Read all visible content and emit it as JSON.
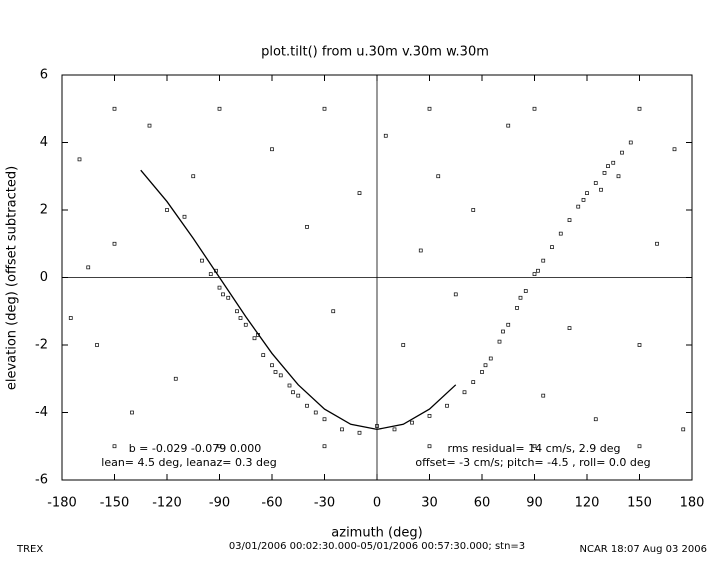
{
  "chart_data": {
    "type": "scatter",
    "title": "plot.tilt() from u.30m v.30m w.30m",
    "x_label": "azimuth (deg)",
    "y_label": "elevation (deg)  (offset subtracted)",
    "xlim": [
      -180,
      180
    ],
    "ylim": [
      -6,
      6
    ],
    "xticks": [
      -180,
      -150,
      -120,
      -90,
      -60,
      -30,
      0,
      30,
      60,
      90,
      120,
      150,
      180
    ],
    "yticks": [
      -6,
      -4,
      -2,
      0,
      2,
      4,
      6
    ],
    "color": "#000000",
    "series": [
      {
        "x": [
          -120,
          -110,
          -100,
          -95,
          -90,
          -85,
          -80,
          -75,
          -70,
          -65,
          -60,
          -55,
          -50,
          -45,
          -40,
          -35,
          -30,
          -20,
          -10,
          0,
          10,
          20,
          30,
          40,
          50,
          55,
          60,
          65,
          70,
          75,
          80,
          85,
          90,
          95,
          100,
          105,
          110,
          115,
          120,
          125,
          130,
          135,
          140,
          145,
          -92,
          -88,
          -78,
          -68,
          -58,
          -48,
          62,
          72,
          82,
          92,
          118,
          128,
          132,
          138,
          -170,
          -160,
          -150,
          -140,
          -130,
          -115,
          -105,
          -60,
          -40,
          -25,
          -10,
          5,
          15,
          25,
          35,
          45,
          55,
          75,
          95,
          110,
          125,
          150,
          160,
          170,
          175,
          -175,
          -165,
          -150,
          -90,
          -30,
          30,
          90,
          150,
          -150,
          -90,
          -30,
          30,
          90,
          150
        ],
        "y": [
          2.0,
          1.8,
          0.5,
          0.1,
          -0.3,
          -0.6,
          -1.0,
          -1.4,
          -1.8,
          -2.3,
          -2.6,
          -2.9,
          -3.2,
          -3.5,
          -3.8,
          -4.0,
          -4.2,
          -4.5,
          -4.6,
          -4.4,
          -4.5,
          -4.3,
          -4.1,
          -3.8,
          -3.4,
          -3.1,
          -2.8,
          -2.4,
          -1.9,
          -1.4,
          -0.9,
          -0.4,
          0.1,
          0.5,
          0.9,
          1.3,
          1.7,
          2.1,
          2.5,
          2.8,
          3.1,
          3.4,
          3.7,
          4.0,
          0.2,
          -0.5,
          -1.2,
          -1.7,
          -2.8,
          -3.4,
          -2.6,
          -1.6,
          -0.6,
          0.2,
          2.3,
          2.6,
          3.3,
          3.0,
          3.5,
          -2,
          1,
          -4,
          4.5,
          -3,
          3,
          3.8,
          1.5,
          -1,
          2.5,
          4.2,
          -2,
          0.8,
          3,
          -0.5,
          2,
          4.5,
          -3.5,
          -1.5,
          -4.2,
          -2,
          1,
          3.8,
          -4.5,
          -1.2,
          0.3,
          5,
          5,
          5,
          5,
          5,
          5,
          -5,
          -5,
          -5,
          -5,
          -5,
          -5
        ]
      },
      {
        "name": "fit",
        "x": [
          -135,
          -120,
          -105,
          -90,
          -75,
          -60,
          -45,
          -30,
          -15,
          0,
          15,
          30,
          45
        ],
        "y": [
          3.18,
          2.25,
          1.16,
          0,
          -1.16,
          -2.25,
          -3.18,
          -3.9,
          -4.35,
          -4.5,
          -4.35,
          -3.9,
          -3.18
        ]
      }
    ],
    "annotations": [
      "b = -0.029 -0.079 0.000",
      "lean= 4.5 deg, leanaz= 0.3 deg",
      "rms residual= 14 cm/s, 2.9 deg",
      "offset= -3 cm/s; pitch= -4.5 , roll=  0.0 deg"
    ],
    "footer": [
      "TREX",
      "03/01/2006 00:02:30.000-05/01/2006 00:57:30.000; stn=3",
      "NCAR 18:07 Aug 03 2006"
    ]
  }
}
